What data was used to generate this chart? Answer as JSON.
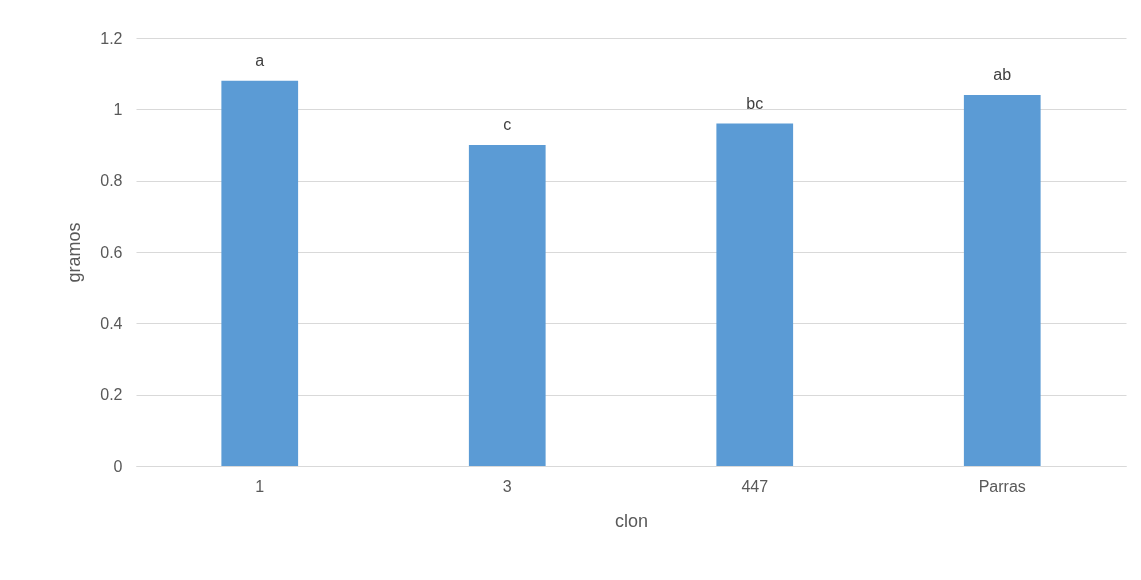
{
  "chart_data": {
    "type": "bar",
    "xlabel": "clon",
    "ylabel": "gramos",
    "categories": [
      "1",
      "3",
      "447",
      "Parras"
    ],
    "values": [
      1.08,
      0.9,
      0.96,
      1.04
    ],
    "color": "#5b9bd5",
    "ylim": [
      0,
      1.2
    ],
    "yticks": [
      0,
      0.2,
      0.4,
      0.6,
      0.8,
      1,
      1.2
    ],
    "grid": "y",
    "annotations": [
      {
        "text": "a",
        "x": "1",
        "y": 1.08
      },
      {
        "text": "c",
        "x": "3",
        "y": 0.9
      },
      {
        "text": "bc",
        "x": "447",
        "y": 0.96
      },
      {
        "text": "ab",
        "x": "Parras",
        "y": 1.04
      }
    ]
  }
}
